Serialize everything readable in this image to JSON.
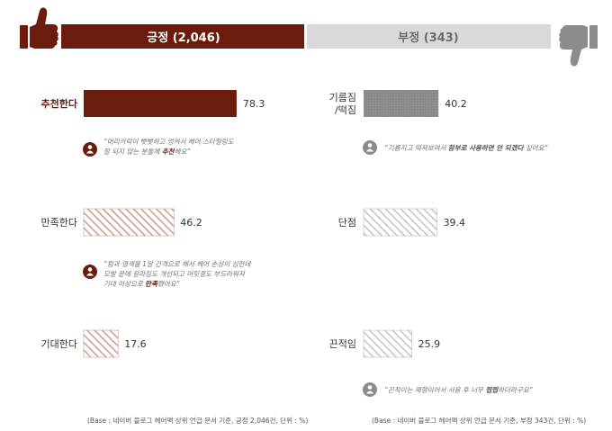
{
  "header": {
    "positive_label": "긍정 (2,046)",
    "negative_label": "부정 (343)"
  },
  "colors": {
    "positive": "#6b1c0c",
    "positive_hatch": "#c9a08c",
    "negative": "#8a8a8a",
    "negative_hatch": "#bdbdbd",
    "header_negative_bg": "#d9d9d9",
    "thumb": "#6b1c0c",
    "comment_text": "#707070"
  },
  "icons": [
    "thumbs-up-icon",
    "thumbs-down-icon",
    "user-icon"
  ],
  "chart_data": [
    {
      "type": "bar",
      "orientation": "horizontal",
      "group": "positive",
      "categories": [
        "추천한다",
        "만족한다",
        "기대한다"
      ],
      "values": [
        78.3,
        46.2,
        17.6
      ],
      "value_labels": [
        "78.3",
        "46.2",
        "17.6"
      ],
      "styles": [
        "solid",
        "hatched",
        "hatched"
      ],
      "comments": [
        {
          "lines": [
            "“머리카락이 뻣뻣하고 엉켜서 헤어 스타일링도",
            "잘 되지 않는 분들께 ",
            "추천",
            "해요”"
          ]
        },
        {
          "lines": [
            "“펌과 염색을 1달 간격으로 해서 헤어 손상이 심한데",
            "모발 끝에 갈라짐도 개선되고 머릿결도 부드러워져",
            "기대 이상으로 ",
            "만족",
            "했어요”"
          ]
        }
      ],
      "base_note": "(Base : 네이버 블로그 헤어팩 상위 언급 문서 기준, 긍정 2,046건, 단위 : %)"
    },
    {
      "type": "bar",
      "orientation": "horizontal",
      "group": "negative",
      "categories": [
        "기름짐/떡짐",
        "단점",
        "끈적임"
      ],
      "category_lines": [
        [
          "기름짐",
          "/떡짐"
        ],
        [
          "단점"
        ],
        [
          "끈적임"
        ]
      ],
      "values": [
        40.2,
        39.4,
        25.9
      ],
      "value_labels": [
        "40.2",
        "39.4",
        "25.9"
      ],
      "styles": [
        "solid",
        "hatched",
        "hatched"
      ],
      "comments": [
        {
          "lines": [
            "“기름지고 떡져보여서 ",
            "함부로 사용하면 안 되겠다",
            " 싶어요”"
          ]
        },
        {
          "lines": [
            "“끈적이는 제형이어서 사용 후 너무 ",
            "찝찝",
            "하더라구요”"
          ]
        }
      ],
      "base_note": "(Base : 네이버 블로그 헤어팩 상위 언급 문서 기준, 부정 343건, 단위 : %)"
    }
  ]
}
